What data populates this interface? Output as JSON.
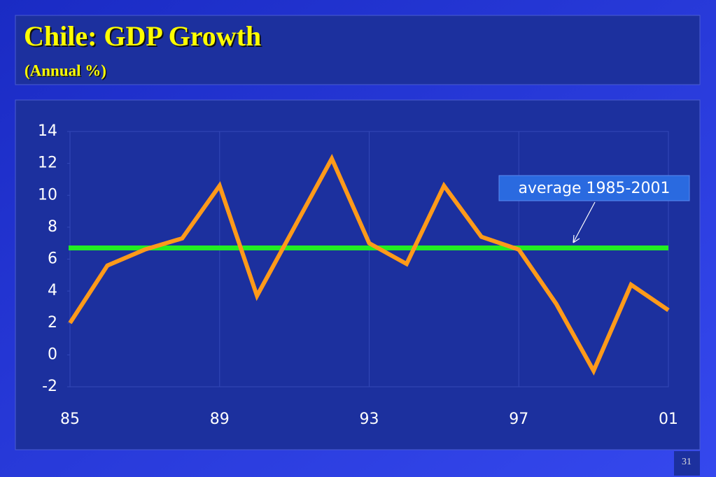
{
  "chart_data": {
    "type": "line",
    "title": "Chile: GDP Growth",
    "subtitle": "(Annual %)",
    "categories": [
      "85",
      null,
      null,
      null,
      "89",
      null,
      null,
      null,
      "93",
      null,
      null,
      null,
      "97",
      null,
      null,
      null,
      "01"
    ],
    "series": [
      {
        "color": "#ff9a1a",
        "values": [
          2.0,
          5.6,
          6.6,
          7.3,
          10.6,
          3.7,
          8.0,
          12.3,
          7.0,
          5.7,
          10.6,
          7.4,
          6.6,
          3.2,
          -1.0,
          4.4,
          2.8
        ]
      }
    ],
    "average": {
      "value": 6.7,
      "label": "average 1985-2001",
      "color": "#22ee22"
    },
    "ylim": [
      -2,
      14
    ],
    "yticks": [
      -2,
      0,
      2,
      4,
      6,
      8,
      10,
      12,
      14
    ]
  },
  "slide": {
    "number": "31"
  }
}
